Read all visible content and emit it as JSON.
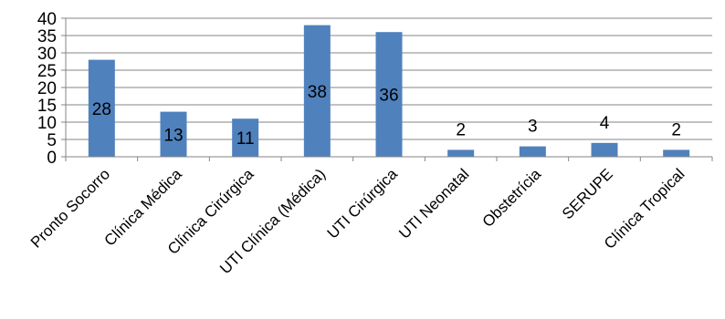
{
  "chart_data": {
    "type": "bar",
    "categories": [
      "Pronto Socorro",
      "Clínica Médica",
      "Clínica Cirúrgica",
      "UTI Clínica (Médica)",
      "UTI Cirúrgica",
      "UTI Neonatal",
      "Obstetrícia",
      "SERUPE",
      "Clínica Tropical"
    ],
    "values": [
      28,
      13,
      11,
      38,
      36,
      2,
      3,
      4,
      2
    ],
    "data_labels": [
      "28",
      "13",
      "11",
      "38",
      "36",
      "2",
      "3",
      "4",
      "2"
    ],
    "title": "",
    "xlabel": "",
    "ylabel": "",
    "ylim": [
      0,
      40
    ],
    "yticks": [
      0,
      5,
      10,
      15,
      20,
      25,
      30,
      35,
      40
    ],
    "grid": true,
    "legend": "none",
    "bar_color": "#4f81bd"
  }
}
